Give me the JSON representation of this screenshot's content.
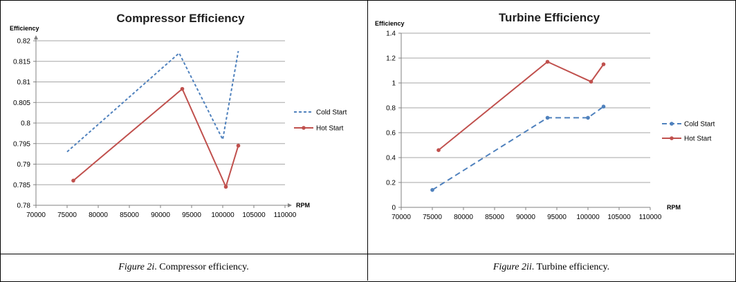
{
  "captions": [
    {
      "figure": "Figure 2i",
      "rest": ". Compressor efficiency."
    },
    {
      "figure": "Figure 2ii",
      "rest": ". Turbine efficiency."
    }
  ],
  "colors": {
    "cold": "#4F81BD",
    "hot": "#C0504D",
    "grid": "#A6A6A6",
    "axis": "#808080"
  },
  "chart_data": [
    {
      "type": "line",
      "title": "Compressor Efficiency",
      "ylabel": "Efficiency",
      "xlabel": "RPM",
      "xlim": [
        70000,
        110000
      ],
      "ylim": [
        0.78,
        0.82
      ],
      "xticks": [
        70000,
        75000,
        80000,
        85000,
        90000,
        95000,
        100000,
        105000,
        110000
      ],
      "yticks": [
        "0.78",
        "0.785",
        "0.79",
        "0.795",
        "0.8",
        "0.805",
        "0.81",
        "0.815",
        "0.82"
      ],
      "grid": true,
      "legend": "right",
      "series": [
        {
          "name": "Cold Start",
          "style": "dashed",
          "marker": "none",
          "points": [
            [
              75000,
              0.793
            ],
            [
              93000,
              0.817
            ],
            [
              100000,
              0.796
            ],
            [
              102500,
              0.8175
            ]
          ]
        },
        {
          "name": "Hot Start",
          "style": "solid",
          "marker": "circle",
          "points": [
            [
              76000,
              0.786
            ],
            [
              93500,
              0.8083
            ],
            [
              100500,
              0.7845
            ],
            [
              102500,
              0.7945
            ]
          ]
        }
      ]
    },
    {
      "type": "line",
      "title": "Turbine Efficiency",
      "ylabel": "Efficiency",
      "xlabel": "RPM",
      "xlim": [
        70000,
        110000
      ],
      "ylim": [
        0,
        1.4
      ],
      "xticks": [
        70000,
        75000,
        80000,
        85000,
        90000,
        95000,
        100000,
        105000,
        110000
      ],
      "yticks": [
        "0",
        "0.2",
        "0.4",
        "0.6",
        "0.8",
        "1",
        "1.2",
        "1.4"
      ],
      "grid": true,
      "legend": "right",
      "series": [
        {
          "name": "Cold Start",
          "style": "dashed",
          "marker": "circle",
          "points": [
            [
              75000,
              0.14
            ],
            [
              93500,
              0.72
            ],
            [
              100000,
              0.72
            ],
            [
              102500,
              0.81
            ]
          ]
        },
        {
          "name": "Hot Start",
          "style": "solid",
          "marker": "circle",
          "points": [
            [
              76000,
              0.46
            ],
            [
              93500,
              1.17
            ],
            [
              100500,
              1.01
            ],
            [
              102500,
              1.15
            ]
          ]
        }
      ]
    }
  ]
}
